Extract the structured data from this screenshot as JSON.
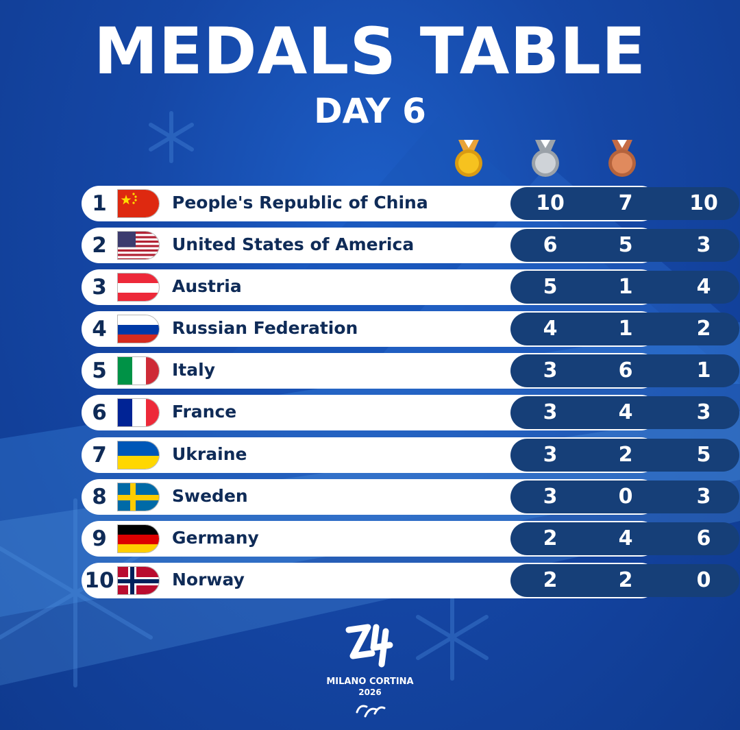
{
  "header": {
    "title": "MEDALS TABLE",
    "subtitle": "DAY 6"
  },
  "columns": [
    {
      "name": "gold-medal-icon",
      "color": "#f4b71a"
    },
    {
      "name": "silver-medal-icon",
      "color": "#b9bec4"
    },
    {
      "name": "bronze-medal-icon",
      "color": "#d2774b"
    }
  ],
  "rows": [
    {
      "rank": "1",
      "country": "People's Republic of China",
      "flag": "china-flag-icon",
      "gold": "10",
      "silver": "7",
      "bronze": "10"
    },
    {
      "rank": "2",
      "country": "United States of America",
      "flag": "usa-flag-icon",
      "gold": "6",
      "silver": "5",
      "bronze": "3"
    },
    {
      "rank": "3",
      "country": "Austria",
      "flag": "austria-flag-icon",
      "gold": "5",
      "silver": "1",
      "bronze": "4"
    },
    {
      "rank": "4",
      "country": "Russian Federation",
      "flag": "russia-flag-icon",
      "gold": "4",
      "silver": "1",
      "bronze": "2"
    },
    {
      "rank": "5",
      "country": "Italy",
      "flag": "italy-flag-icon",
      "gold": "3",
      "silver": "6",
      "bronze": "1"
    },
    {
      "rank": "6",
      "country": "France",
      "flag": "france-flag-icon",
      "gold": "3",
      "silver": "4",
      "bronze": "3"
    },
    {
      "rank": "7",
      "country": "Ukraine",
      "flag": "ukraine-flag-icon",
      "gold": "3",
      "silver": "2",
      "bronze": "5"
    },
    {
      "rank": "8",
      "country": "Sweden",
      "flag": "sweden-flag-icon",
      "gold": "3",
      "silver": "0",
      "bronze": "3"
    },
    {
      "rank": "9",
      "country": "Germany",
      "flag": "germany-flag-icon",
      "gold": "2",
      "silver": "4",
      "bronze": "6"
    },
    {
      "rank": "10",
      "country": "Norway",
      "flag": "norway-flag-icon",
      "gold": "2",
      "silver": "2",
      "bronze": "0"
    }
  ],
  "logo": {
    "name": "MILANO CORTINA",
    "year": "2026"
  },
  "colors": {
    "background": "#1547a6",
    "row_background": "#ffffff",
    "count_background": "#163f78",
    "text_dark": "#0f2b57"
  }
}
